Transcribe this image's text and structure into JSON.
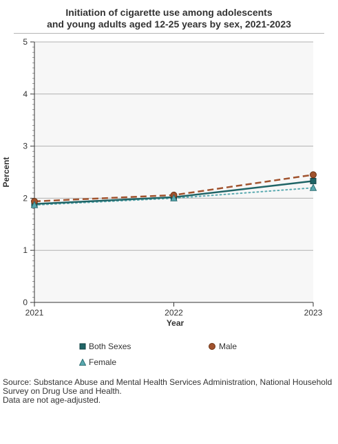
{
  "title_line1": "Initiation of cigarette use among adolescents",
  "title_line2": "and young adults aged 12-25 years by sex, 2021-2023",
  "chart_data": {
    "type": "line",
    "xlabel": "Year",
    "ylabel": "Percent",
    "x": [
      "2021",
      "2022",
      "2023"
    ],
    "ylim": [
      0,
      5
    ],
    "yticks": [
      "0",
      "1",
      "2",
      "3",
      "4",
      "5"
    ],
    "grid": true,
    "legend_position": "bottom",
    "series": [
      {
        "name": "Both Sexes",
        "values": [
          1.89,
          2.02,
          2.33
        ],
        "color": "#1f6466",
        "marker": "square",
        "line": "solid"
      },
      {
        "name": "Male",
        "values": [
          1.94,
          2.06,
          2.45
        ],
        "color": "#a0522d",
        "marker": "circle",
        "line": "dashed"
      },
      {
        "name": "Female",
        "values": [
          1.87,
          2.0,
          2.2
        ],
        "color": "#5aaab0",
        "marker": "triangle",
        "line": "dotted"
      }
    ]
  },
  "legend": {
    "both": "Both Sexes",
    "male": "Male",
    "female": "Female"
  },
  "source": {
    "line1": "Source: Substance Abuse and Mental Health Services Administration, National Household Survey on Drug Use and Health.",
    "line2": "Data are not age-adjusted."
  }
}
